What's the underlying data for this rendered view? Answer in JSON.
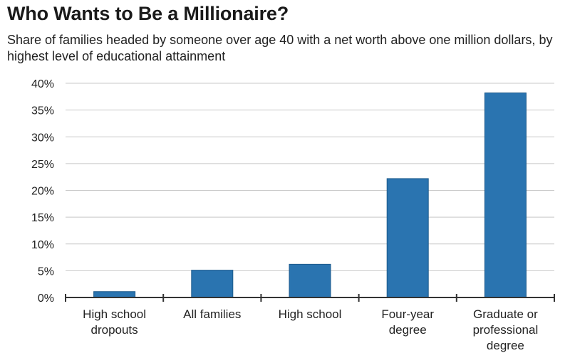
{
  "chart_data": {
    "type": "bar",
    "title": "Who Wants to Be a Millionaire?",
    "subtitle": "Share of families headed by someone over age 40 with a net worth above one million dollars, by highest level of educational attainment",
    "categories": [
      [
        "High school",
        "dropouts"
      ],
      [
        "All families"
      ],
      [
        "High school"
      ],
      [
        "Four-year",
        "degree"
      ],
      [
        "Graduate or",
        "professional",
        "degree"
      ]
    ],
    "values": [
      1.1,
      5.1,
      6.2,
      22.2,
      38.2
    ],
    "ylim": [
      0,
      40
    ],
    "yticks": [
      "0%",
      "5%",
      "10%",
      "15%",
      "20%",
      "25%",
      "30%",
      "35%",
      "40%"
    ],
    "grid": true,
    "legend": "none",
    "bar_color": "#2a74b0",
    "grid_color": "#c8c8c8",
    "axis_color": "#333333"
  }
}
